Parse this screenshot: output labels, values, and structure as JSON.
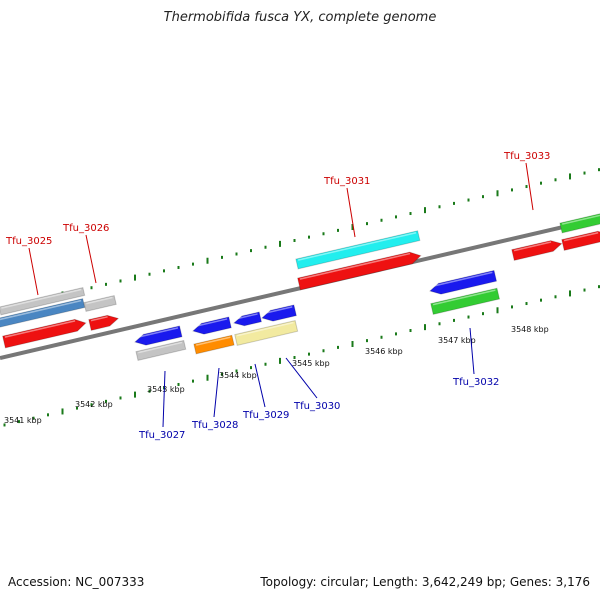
{
  "title": "Thermobifida fusca YX, complete genome",
  "footer": {
    "accession": "Accession: NC_007333",
    "summary": "Topology: circular; Length: 3,642,249 bp; Genes: 3,176"
  },
  "colors": {
    "forward_label": "#cc0000",
    "reverse_label": "#0000aa",
    "tick": "#1a7a1a",
    "backbone": "#777777"
  },
  "kbp_labels": [
    "3541 kbp",
    "3542 kbp",
    "3543 kbp",
    "3544 kbp",
    "3545 kbp",
    "3546 kbp",
    "3547 kbp",
    "3548 kbp"
  ],
  "genes_forward": [
    {
      "name": "Tfu_3025",
      "color": "#ee1111"
    },
    {
      "name": "Tfu_3026",
      "color": "#ee1111"
    },
    {
      "name": "Tfu_3031",
      "color": "#ee1111"
    },
    {
      "name": "Tfu_3033",
      "color": "#ee1111"
    }
  ],
  "genes_reverse": [
    {
      "name": "Tfu_3027",
      "color": "#1a1aee"
    },
    {
      "name": "Tfu_3028",
      "color": "#1a1aee"
    },
    {
      "name": "Tfu_3029",
      "color": "#1a1aee"
    },
    {
      "name": "Tfu_3030",
      "color": "#1a1aee"
    },
    {
      "name": "Tfu_3032",
      "color": "#1a1aee"
    }
  ],
  "feature_colors": {
    "gray": "#c4c4c4",
    "steel_blue": "#4a86c2",
    "cyan": "#22eeee",
    "green": "#33cc33",
    "orange": "#ff8c00",
    "khaki": "#f2eaa0"
  }
}
